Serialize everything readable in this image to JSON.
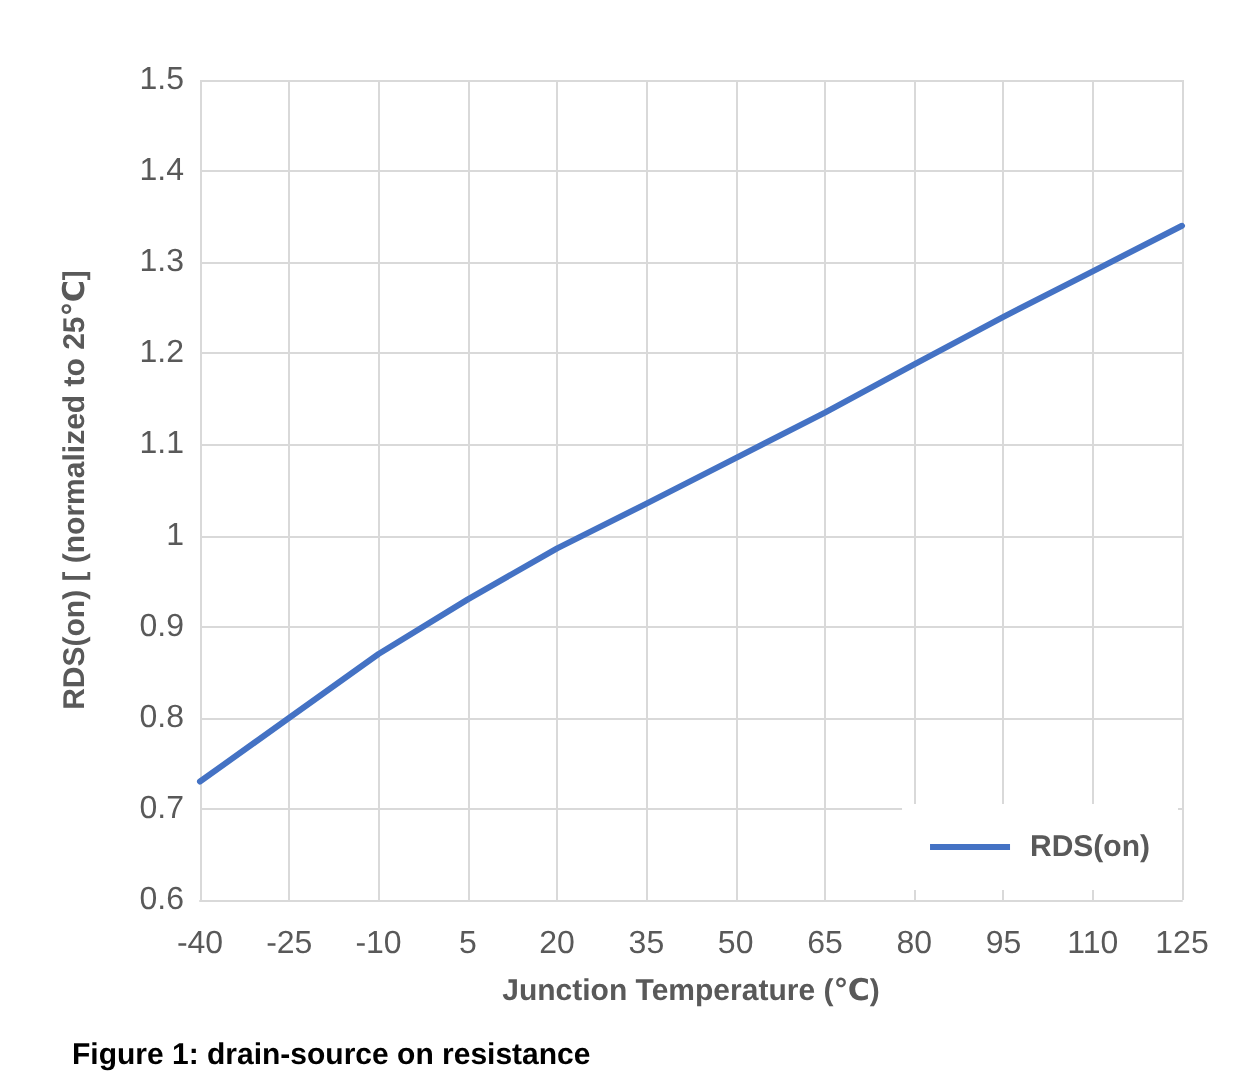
{
  "chart_data": {
    "type": "line",
    "xlabel": "Junction Temperature (℃)",
    "ylabel": "RDS(on) [ (normalized to 25℃]",
    "annotations": [
      "Figure 1: drain-source on resistance"
    ],
    "x": [
      -40,
      -25,
      -10,
      5,
      20,
      35,
      50,
      65,
      80,
      95,
      110,
      125
    ],
    "series": [
      {
        "name": "RDS(on)",
        "color": "#4472c4",
        "values": [
          0.73,
          0.8,
          0.87,
          0.93,
          0.986,
          1.035,
          1.085,
          1.135,
          1.188,
          1.24,
          1.29,
          1.34
        ]
      }
    ],
    "xlim": [
      -40,
      125
    ],
    "xticks": [
      -40,
      -25,
      -10,
      5,
      20,
      35,
      50,
      65,
      80,
      95,
      110,
      125
    ],
    "ylim": [
      0.6,
      1.5
    ],
    "yticks": [
      0.6,
      0.7,
      0.8,
      0.9,
      1,
      1.1,
      1.2,
      1.3,
      1.4,
      1.5
    ],
    "grid": true,
    "legend": "bottom right",
    "marker": "none",
    "line_style": "solid"
  }
}
